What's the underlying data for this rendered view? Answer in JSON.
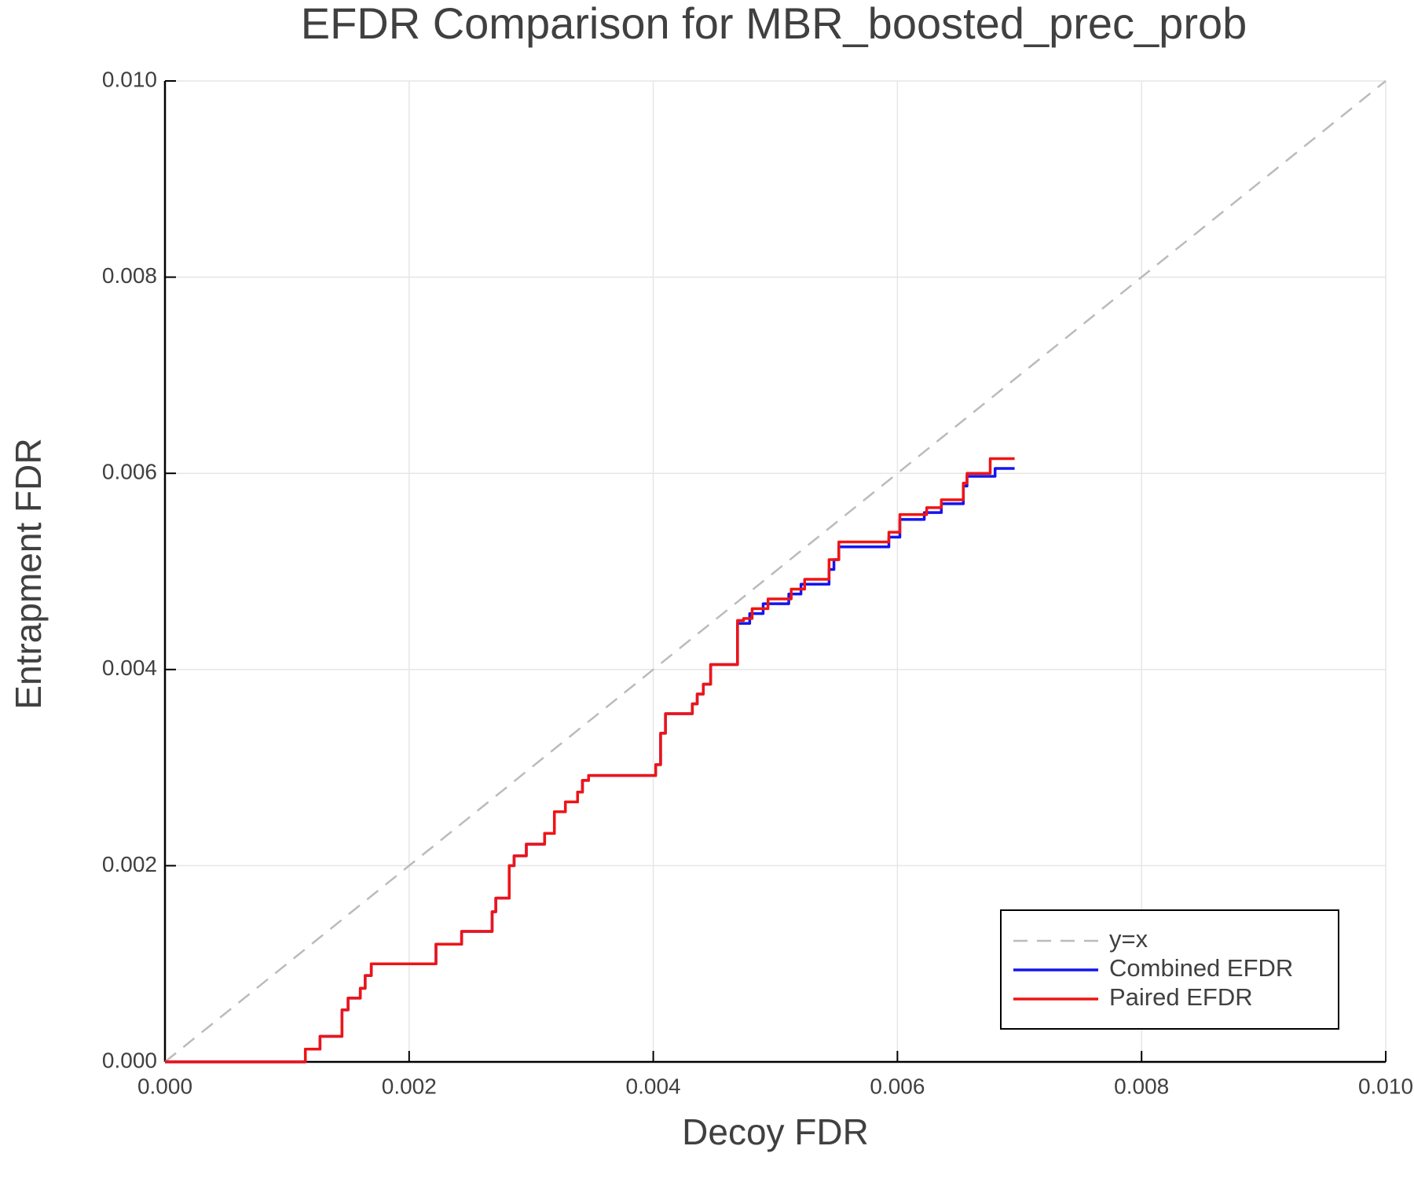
{
  "chart_data": {
    "type": "line",
    "title": "EFDR Comparison for MBR_boosted_prec_prob",
    "x_label": "Decoy FDR",
    "y_label": "Entrapment FDR",
    "xlim": [
      0,
      0.01
    ],
    "ylim": [
      0,
      0.01
    ],
    "xticks": [
      {
        "value": 0,
        "label": "0.000"
      },
      {
        "value": 0.002,
        "label": "0.002"
      },
      {
        "value": 0.004,
        "label": "0.004"
      },
      {
        "value": 0.006,
        "label": "0.006"
      },
      {
        "value": 0.008,
        "label": "0.008"
      },
      {
        "value": 0.01,
        "label": "0.010"
      }
    ],
    "yticks": [
      {
        "value": 0,
        "label": "0.000"
      },
      {
        "value": 0.002,
        "label": "0.002"
      },
      {
        "value": 0.004,
        "label": "0.004"
      },
      {
        "value": 0.006,
        "label": "0.006"
      },
      {
        "value": 0.008,
        "label": "0.008"
      },
      {
        "value": 0.01,
        "label": "0.010"
      }
    ],
    "grid": true,
    "legend": "bottom right",
    "series": [
      {
        "name": "y=x",
        "color": "#bbbbbb",
        "dash": true,
        "x": [
          0,
          0.01
        ],
        "values": [
          0,
          0.01
        ]
      },
      {
        "name": "Combined EFDR",
        "color": "#1414f0",
        "dash": false,
        "x": [
          0,
          0.00115,
          0.00115,
          0.00127,
          0.00127,
          0.00145,
          0.00145,
          0.0015,
          0.0015,
          0.0016,
          0.0016,
          0.00164,
          0.00164,
          0.00169,
          0.00169,
          0.00222,
          0.00222,
          0.00243,
          0.00243,
          0.00268,
          0.00268,
          0.00271,
          0.00271,
          0.00282,
          0.00282,
          0.00286,
          0.00286,
          0.00296,
          0.00296,
          0.00311,
          0.00311,
          0.00319,
          0.00319,
          0.00328,
          0.00328,
          0.00338,
          0.00338,
          0.00342,
          0.00342,
          0.00347,
          0.00347,
          0.00402,
          0.00402,
          0.00406,
          0.00406,
          0.0041,
          0.0041,
          0.00432,
          0.00432,
          0.00436,
          0.00436,
          0.00441,
          0.00441,
          0.00447,
          0.00447,
          0.00469,
          0.00469,
          0.00479,
          0.00479,
          0.0049,
          0.0049,
          0.00511,
          0.00511,
          0.00521,
          0.00521,
          0.00544,
          0.00544,
          0.00548,
          0.00548,
          0.00552,
          0.00552,
          0.00593,
          0.00593,
          0.00602,
          0.00602,
          0.00622,
          0.00622,
          0.00636,
          0.00636,
          0.00654,
          0.00654,
          0.00657,
          0.00657,
          0.0068,
          0.0068,
          0.00696
        ],
        "values": [
          0,
          0,
          0.00013,
          0.00013,
          0.00026,
          0.00026,
          0.00053,
          0.00053,
          0.00065,
          0.00065,
          0.00075,
          0.00075,
          0.00088,
          0.00088,
          0.001,
          0.001,
          0.0012,
          0.0012,
          0.00133,
          0.00133,
          0.00153,
          0.00153,
          0.00167,
          0.00167,
          0.002,
          0.002,
          0.0021,
          0.0021,
          0.00222,
          0.00222,
          0.00233,
          0.00233,
          0.00255,
          0.00255,
          0.00265,
          0.00265,
          0.00275,
          0.00275,
          0.00287,
          0.00287,
          0.00292,
          0.00292,
          0.00303,
          0.00303,
          0.00335,
          0.00335,
          0.00355,
          0.00355,
          0.00365,
          0.00365,
          0.00375,
          0.00375,
          0.00385,
          0.00385,
          0.00405,
          0.00405,
          0.00447,
          0.00447,
          0.00457,
          0.00457,
          0.00467,
          0.00467,
          0.00477,
          0.00477,
          0.00487,
          0.00487,
          0.00502,
          0.00502,
          0.00512,
          0.00512,
          0.00525,
          0.00525,
          0.00535,
          0.00535,
          0.00553,
          0.00553,
          0.0056,
          0.0056,
          0.00569,
          0.00569,
          0.00587,
          0.00587,
          0.00597,
          0.00597,
          0.00605,
          0.00605
        ]
      },
      {
        "name": "Paired EFDR",
        "color": "#f01414",
        "dash": false,
        "x": [
          0,
          0.00115,
          0.00115,
          0.00127,
          0.00127,
          0.00145,
          0.00145,
          0.0015,
          0.0015,
          0.0016,
          0.0016,
          0.00164,
          0.00164,
          0.00169,
          0.00169,
          0.00222,
          0.00222,
          0.00243,
          0.00243,
          0.00268,
          0.00268,
          0.00271,
          0.00271,
          0.00282,
          0.00282,
          0.00286,
          0.00286,
          0.00296,
          0.00296,
          0.00311,
          0.00311,
          0.00319,
          0.00319,
          0.00328,
          0.00328,
          0.00338,
          0.00338,
          0.00342,
          0.00342,
          0.00347,
          0.00347,
          0.00402,
          0.00402,
          0.00406,
          0.00406,
          0.0041,
          0.0041,
          0.00432,
          0.00432,
          0.00436,
          0.00436,
          0.00441,
          0.00441,
          0.00447,
          0.00447,
          0.00469,
          0.00469,
          0.00474,
          0.00474,
          0.00481,
          0.00481,
          0.00494,
          0.00494,
          0.00513,
          0.00513,
          0.00524,
          0.00524,
          0.00544,
          0.00544,
          0.00552,
          0.00552,
          0.00593,
          0.00593,
          0.00602,
          0.00602,
          0.00624,
          0.00624,
          0.00636,
          0.00636,
          0.00654,
          0.00654,
          0.00657,
          0.00657,
          0.00676,
          0.00676,
          0.00696
        ],
        "values": [
          0,
          0,
          0.00013,
          0.00013,
          0.00026,
          0.00026,
          0.00053,
          0.00053,
          0.00065,
          0.00065,
          0.00075,
          0.00075,
          0.00088,
          0.00088,
          0.001,
          0.001,
          0.0012,
          0.0012,
          0.00133,
          0.00133,
          0.00153,
          0.00153,
          0.00167,
          0.00167,
          0.002,
          0.002,
          0.0021,
          0.0021,
          0.00222,
          0.00222,
          0.00233,
          0.00233,
          0.00255,
          0.00255,
          0.00265,
          0.00265,
          0.00275,
          0.00275,
          0.00287,
          0.00287,
          0.00292,
          0.00292,
          0.00303,
          0.00303,
          0.00335,
          0.00335,
          0.00355,
          0.00355,
          0.00365,
          0.00365,
          0.00375,
          0.00375,
          0.00385,
          0.00385,
          0.00405,
          0.00405,
          0.0045,
          0.0045,
          0.00452,
          0.00452,
          0.00462,
          0.00462,
          0.00472,
          0.00472,
          0.00482,
          0.00482,
          0.00492,
          0.00492,
          0.00512,
          0.00512,
          0.0053,
          0.0053,
          0.0054,
          0.0054,
          0.00558,
          0.00558,
          0.00565,
          0.00565,
          0.00573,
          0.00573,
          0.0059,
          0.0059,
          0.006,
          0.006,
          0.00615,
          0.00615
        ]
      }
    ]
  }
}
